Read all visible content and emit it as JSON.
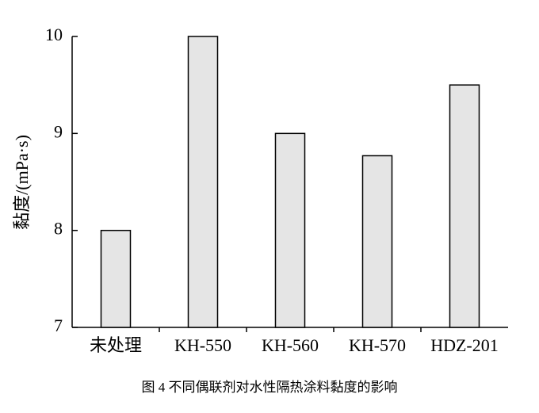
{
  "chart_data": {
    "type": "bar",
    "caption": "图 4 不同偶联剂对水性隔热涂料黏度的影响",
    "y_label": "黏度/(mPa·s)",
    "categories": [
      "未处理",
      "KH-550",
      "KH-560",
      "KH-570",
      "HDZ-201"
    ],
    "values": [
      8,
      10,
      9,
      8.77,
      9.5
    ],
    "color": "#e5e5e5",
    "ylim": [
      7,
      10
    ],
    "yticks": [
      7,
      8,
      9,
      10
    ],
    "grid": false
  }
}
